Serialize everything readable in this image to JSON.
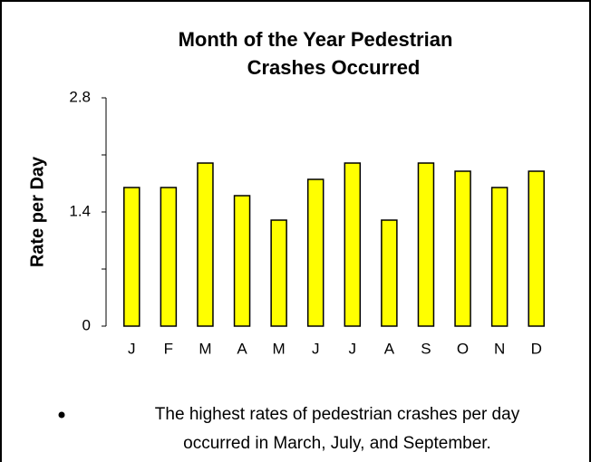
{
  "chart_data": {
    "type": "bar",
    "title_lines": [
      "Month of the Year Pedestrian",
      "Crashes Occurred"
    ],
    "y_label": "Rate per Day",
    "categories": [
      "J",
      "F",
      "M",
      "A",
      "M",
      "J",
      "J",
      "A",
      "S",
      "O",
      "N",
      "D"
    ],
    "values": [
      1.7,
      1.7,
      2.0,
      1.6,
      1.3,
      1.8,
      2.0,
      1.3,
      2.0,
      1.9,
      1.7,
      1.9
    ],
    "color": "#ffff00",
    "ylim": [
      0,
      2.8
    ],
    "yticks": [
      0,
      1.4,
      2.8
    ],
    "yminorticks": [
      0.7,
      2.1
    ],
    "annotation_lines": [
      "The highest rates of pedestrian crashes per day",
      "occurred in March, July,  and September."
    ]
  }
}
